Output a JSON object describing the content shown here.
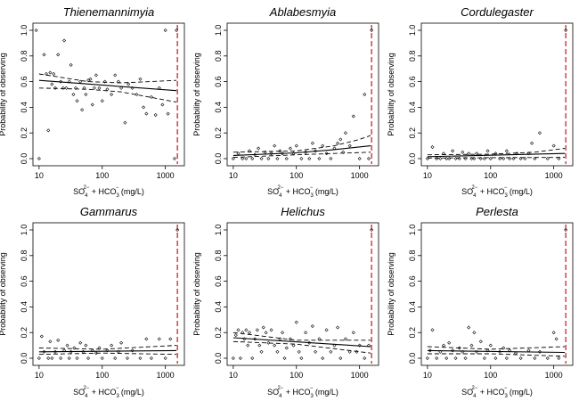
{
  "chart_data": [
    {
      "type": "scatter",
      "title": "Thienemannimyia",
      "xlabel": "SO4 + HCO3 (mg/L)",
      "ylabel": "Probability of observing",
      "x_scale": "log",
      "xlim": [
        8,
        2000
      ],
      "ylim": [
        0,
        1
      ],
      "xticks": [
        "10",
        "100",
        "1000"
      ],
      "yticks": [
        "0.0",
        "0.2",
        "0.4",
        "0.6",
        "0.8",
        "1.0"
      ],
      "threshold_x": 1550,
      "fit": {
        "x": [
          10,
          1500
        ],
        "y": [
          0.61,
          0.53
        ]
      },
      "ci_upper": {
        "x": [
          10,
          60,
          200,
          1500
        ],
        "y": [
          0.66,
          0.6,
          0.59,
          0.61
        ]
      },
      "ci_lower": {
        "x": [
          10,
          60,
          200,
          1500
        ],
        "y": [
          0.55,
          0.54,
          0.52,
          0.44
        ]
      },
      "points": {
        "x": [
          9,
          10,
          12,
          13,
          14,
          15,
          16,
          17,
          18,
          20,
          22,
          24,
          25,
          27,
          30,
          32,
          35,
          38,
          40,
          45,
          48,
          52,
          55,
          60,
          65,
          70,
          75,
          80,
          90,
          100,
          110,
          120,
          140,
          160,
          180,
          200,
          230,
          260,
          300,
          350,
          400,
          450,
          500,
          600,
          700,
          800,
          900,
          1000,
          1100,
          1400,
          1500
        ],
        "y": [
          1.0,
          0.0,
          0.81,
          0.66,
          0.22,
          0.67,
          0.58,
          0.66,
          0.55,
          0.81,
          0.6,
          0.55,
          0.92,
          0.55,
          0.6,
          0.73,
          0.5,
          0.55,
          0.45,
          0.6,
          0.38,
          0.55,
          0.5,
          0.61,
          0.62,
          0.42,
          0.55,
          0.65,
          0.55,
          0.45,
          0.6,
          0.54,
          0.5,
          0.65,
          0.6,
          0.55,
          0.28,
          0.58,
          0.55,
          0.5,
          0.62,
          0.4,
          0.35,
          0.48,
          0.34,
          0.55,
          0.42,
          1.0,
          0.35,
          0.0,
          1.0
        ]
      }
    },
    {
      "type": "scatter",
      "title": "Ablabesmyia",
      "xlabel": "SO4 + HCO3 (mg/L)",
      "ylabel": "Probability of observing",
      "x_scale": "log",
      "xlim": [
        8,
        2000
      ],
      "ylim": [
        0,
        1
      ],
      "xticks": [
        "10",
        "100",
        "1000"
      ],
      "yticks": [
        "0.0",
        "0.2",
        "0.4",
        "0.6",
        "0.8",
        "1.0"
      ],
      "threshold_x": 1550,
      "fit": {
        "x": [
          10,
          100,
          400,
          1500
        ],
        "y": [
          0.025,
          0.045,
          0.07,
          0.1
        ]
      },
      "ci_upper": {
        "x": [
          10,
          100,
          400,
          1000,
          1500
        ],
        "y": [
          0.05,
          0.06,
          0.1,
          0.15,
          0.18
        ]
      },
      "ci_lower": {
        "x": [
          10,
          100,
          400,
          1500
        ],
        "y": [
          0.01,
          0.03,
          0.04,
          0.05
        ]
      },
      "points": {
        "x": [
          10,
          12,
          14,
          16,
          18,
          20,
          22,
          25,
          28,
          32,
          36,
          40,
          45,
          50,
          55,
          60,
          70,
          80,
          90,
          100,
          120,
          140,
          160,
          180,
          200,
          230,
          260,
          300,
          350,
          400,
          450,
          500,
          550,
          600,
          700,
          800,
          1000,
          1200,
          1400,
          1550
        ],
        "y": [
          0.0,
          0.04,
          0.0,
          0.0,
          0.06,
          0.0,
          0.03,
          0.08,
          0.0,
          0.05,
          0.0,
          0.04,
          0.1,
          0.0,
          0.06,
          0.04,
          0.0,
          0.08,
          0.04,
          0.1,
          0.0,
          0.05,
          0.0,
          0.12,
          0.06,
          0.0,
          0.1,
          0.04,
          0.0,
          0.08,
          0.12,
          0.15,
          0.05,
          0.2,
          0.1,
          0.33,
          0.0,
          0.5,
          0.0,
          1.0
        ]
      }
    },
    {
      "type": "scatter",
      "title": "Cordulegaster",
      "xlabel": "SO4 + HCO3 (mg/L)",
      "ylabel": "Probability of observing",
      "x_scale": "log",
      "xlim": [
        8,
        2000
      ],
      "ylim": [
        0,
        1
      ],
      "xticks": [
        "10",
        "100",
        "1000"
      ],
      "yticks": [
        "0.0",
        "0.2",
        "0.4",
        "0.6",
        "0.8",
        "1.0"
      ],
      "threshold_x": 1550,
      "fit": {
        "x": [
          10,
          1500
        ],
        "y": [
          0.015,
          0.04
        ]
      },
      "ci_upper": {
        "x": [
          10,
          100,
          500,
          1500
        ],
        "y": [
          0.03,
          0.035,
          0.05,
          0.08
        ]
      },
      "ci_lower": {
        "x": [
          10,
          1500
        ],
        "y": [
          0.005,
          0.01
        ]
      },
      "points": {
        "x": [
          10,
          12,
          14,
          16,
          18,
          20,
          22,
          25,
          28,
          32,
          36,
          40,
          45,
          50,
          55,
          60,
          70,
          80,
          90,
          100,
          120,
          140,
          160,
          180,
          200,
          230,
          260,
          300,
          350,
          400,
          450,
          500,
          600,
          800,
          1000,
          1200,
          1550
        ],
        "y": [
          0.0,
          0.09,
          0.0,
          0.0,
          0.04,
          0.0,
          0.0,
          0.06,
          0.0,
          0.0,
          0.05,
          0.0,
          0.04,
          0.0,
          0.0,
          0.04,
          0.0,
          0.0,
          0.06,
          0.0,
          0.04,
          0.0,
          0.0,
          0.06,
          0.0,
          0.0,
          0.04,
          0.0,
          0.0,
          0.04,
          0.12,
          0.0,
          0.2,
          0.0,
          0.1,
          0.0,
          1.0
        ]
      }
    },
    {
      "type": "scatter",
      "title": "Gammarus",
      "xlabel": "SO4 + HCO3 (mg/L)",
      "ylabel": "Probability of observing",
      "x_scale": "log",
      "xlim": [
        8,
        2000
      ],
      "ylim": [
        0,
        1
      ],
      "xticks": [
        "10",
        "100",
        "1000"
      ],
      "yticks": [
        "0.0",
        "0.2",
        "0.4",
        "0.6",
        "0.8",
        "1.0"
      ],
      "threshold_x": 1550,
      "fit": {
        "x": [
          10,
          1500
        ],
        "y": [
          0.05,
          0.06
        ]
      },
      "ci_upper": {
        "x": [
          10,
          100,
          1500
        ],
        "y": [
          0.08,
          0.07,
          0.1
        ]
      },
      "ci_lower": {
        "x": [
          10,
          100,
          1500
        ],
        "y": [
          0.03,
          0.04,
          0.03
        ]
      },
      "points": {
        "x": [
          10,
          11,
          12,
          14,
          15,
          16,
          18,
          20,
          22,
          25,
          28,
          30,
          32,
          36,
          40,
          45,
          50,
          55,
          60,
          70,
          80,
          90,
          100,
          120,
          140,
          160,
          180,
          200,
          250,
          300,
          400,
          500,
          600,
          800,
          1000,
          1200,
          1550
        ],
        "y": [
          0.0,
          0.17,
          0.05,
          0.0,
          0.13,
          0.0,
          0.05,
          0.14,
          0.0,
          0.06,
          0.1,
          0.0,
          0.05,
          0.08,
          0.0,
          0.12,
          0.05,
          0.1,
          0.0,
          0.06,
          0.04,
          0.08,
          0.0,
          0.06,
          0.1,
          0.0,
          0.05,
          0.12,
          0.0,
          0.06,
          0.0,
          0.15,
          0.0,
          0.15,
          0.0,
          0.15,
          1.0
        ]
      }
    },
    {
      "type": "scatter",
      "title": "Helichus",
      "xlabel": "SO4 + HCO3 (mg/L)",
      "ylabel": "Probability of observing",
      "x_scale": "log",
      "xlim": [
        8,
        2000
      ],
      "ylim": [
        0,
        1
      ],
      "xticks": [
        "10",
        "100",
        "1000"
      ],
      "yticks": [
        "0.0",
        "0.2",
        "0.4",
        "0.6",
        "0.8",
        "1.0"
      ],
      "threshold_x": 1550,
      "fit": {
        "x": [
          10,
          1500
        ],
        "y": [
          0.16,
          0.09
        ]
      },
      "ci_upper": {
        "x": [
          10,
          100,
          1500
        ],
        "y": [
          0.2,
          0.14,
          0.14
        ]
      },
      "ci_lower": {
        "x": [
          10,
          100,
          1500
        ],
        "y": [
          0.13,
          0.11,
          0.04
        ]
      },
      "points": {
        "x": [
          10,
          11,
          12,
          13,
          14,
          15,
          16,
          17,
          18,
          20,
          22,
          24,
          26,
          28,
          30,
          33,
          36,
          40,
          45,
          50,
          55,
          60,
          65,
          70,
          80,
          90,
          100,
          110,
          120,
          140,
          160,
          180,
          200,
          230,
          260,
          300,
          350,
          400,
          450,
          500,
          600,
          700,
          800,
          900,
          1000,
          1200,
          1400,
          1550
        ],
        "y": [
          0.0,
          0.18,
          0.22,
          0.0,
          0.2,
          0.15,
          0.22,
          0.1,
          0.2,
          0.0,
          0.15,
          0.22,
          0.1,
          0.05,
          0.24,
          0.2,
          0.12,
          0.22,
          0.1,
          0.05,
          0.15,
          0.2,
          0.0,
          0.08,
          0.15,
          0.1,
          0.28,
          0.05,
          0.0,
          0.2,
          0.12,
          0.25,
          0.05,
          0.15,
          0.0,
          0.22,
          0.05,
          0.1,
          0.24,
          0.0,
          0.15,
          0.05,
          0.2,
          0.05,
          0.1,
          0.0,
          0.1,
          1.0
        ]
      }
    },
    {
      "type": "scatter",
      "title": "Perlesta",
      "xlabel": "SO4 + HCO3 (mg/L)",
      "ylabel": "Probability of observing",
      "x_scale": "log",
      "xlim": [
        8,
        2000
      ],
      "ylim": [
        0,
        1
      ],
      "xticks": [
        "10",
        "100",
        "1000"
      ],
      "yticks": [
        "0.0",
        "0.2",
        "0.4",
        "0.6",
        "0.8",
        "1.0"
      ],
      "threshold_x": 1550,
      "fit": {
        "x": [
          10,
          1500
        ],
        "y": [
          0.06,
          0.045
        ]
      },
      "ci_upper": {
        "x": [
          10,
          100,
          1500
        ],
        "y": [
          0.09,
          0.07,
          0.09
        ]
      },
      "ci_lower": {
        "x": [
          10,
          100,
          1500
        ],
        "y": [
          0.035,
          0.035,
          0.015
        ]
      },
      "points": {
        "x": [
          10,
          11,
          12,
          14,
          16,
          18,
          20,
          22,
          25,
          28,
          32,
          36,
          40,
          45,
          50,
          55,
          60,
          70,
          80,
          90,
          100,
          120,
          140,
          160,
          180,
          200,
          250,
          300,
          400,
          500,
          600,
          800,
          1000,
          1100,
          1200,
          1550
        ],
        "y": [
          0.0,
          0.06,
          0.22,
          0.0,
          0.05,
          0.1,
          0.0,
          0.12,
          0.06,
          0.0,
          0.08,
          0.05,
          0.0,
          0.24,
          0.1,
          0.2,
          0.05,
          0.13,
          0.0,
          0.06,
          0.1,
          0.0,
          0.05,
          0.08,
          0.0,
          0.06,
          0.04,
          0.0,
          0.06,
          0.0,
          0.05,
          0.0,
          0.2,
          0.15,
          0.0,
          1.0
        ]
      }
    }
  ]
}
